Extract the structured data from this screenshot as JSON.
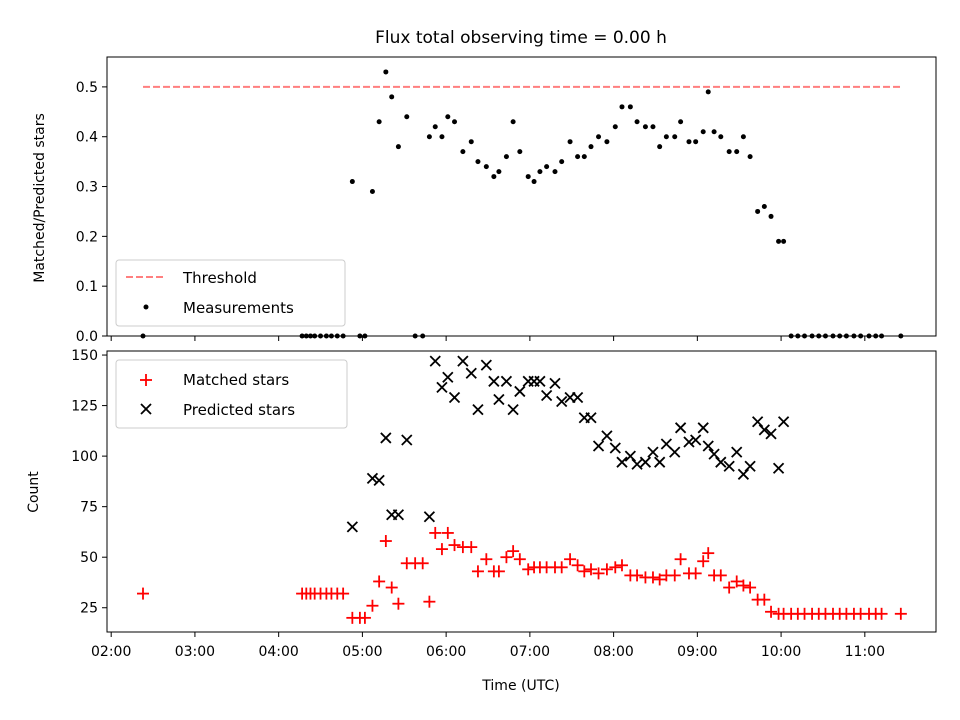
{
  "chart_data": [
    {
      "type": "scatter",
      "title": "Flux total observing time = 0.00 h",
      "ylabel": "Matched/Predicted stars",
      "xlabel": "",
      "ylim": [
        0,
        0.56
      ],
      "yticks": [
        "0.0",
        "0.1",
        "0.2",
        "0.3",
        "0.4",
        "0.5"
      ],
      "ytick_values": [
        0,
        0.1,
        0.2,
        0.3,
        0.4,
        0.5
      ],
      "grid": false,
      "legend": "lower-left",
      "threshold": {
        "name": "Threshold",
        "value": 0.5,
        "x_range": [
          2.38,
          11.43
        ],
        "color": "#ff7f7f"
      },
      "series": [
        {
          "name": "Measurements",
          "color": "#000000",
          "marker": "dot",
          "x": [
            2.38,
            4.28,
            4.33,
            4.38,
            4.43,
            4.5,
            4.57,
            4.63,
            4.7,
            4.77,
            4.88,
            4.97,
            5.03,
            5.12,
            5.2,
            5.28,
            5.35,
            5.43,
            5.53,
            5.63,
            5.72,
            5.8,
            5.87,
            5.95,
            6.02,
            6.1,
            6.2,
            6.3,
            6.38,
            6.48,
            6.57,
            6.63,
            6.72,
            6.8,
            6.88,
            6.98,
            7.05,
            7.12,
            7.2,
            7.3,
            7.38,
            7.48,
            7.57,
            7.65,
            7.73,
            7.82,
            7.92,
            8.02,
            8.1,
            8.2,
            8.28,
            8.38,
            8.47,
            8.55,
            8.63,
            8.73,
            8.8,
            8.9,
            8.98,
            9.07,
            9.13,
            9.2,
            9.28,
            9.38,
            9.47,
            9.55,
            9.63,
            9.72,
            9.8,
            9.88,
            9.97,
            10.03,
            10.12,
            10.2,
            10.28,
            10.37,
            10.45,
            10.53,
            10.62,
            10.7,
            10.78,
            10.87,
            10.95,
            11.05,
            11.13,
            11.2,
            11.43
          ],
          "y": [
            0.0,
            0.0,
            0.0,
            0.0,
            0.0,
            0.0,
            0.0,
            0.0,
            0.0,
            0.0,
            0.31,
            0.0,
            0.0,
            0.29,
            0.43,
            0.53,
            0.48,
            0.38,
            0.44,
            0.0,
            0.0,
            0.4,
            0.42,
            0.4,
            0.44,
            0.43,
            0.37,
            0.39,
            0.35,
            0.34,
            0.32,
            0.33,
            0.36,
            0.43,
            0.37,
            0.32,
            0.31,
            0.33,
            0.34,
            0.33,
            0.35,
            0.39,
            0.36,
            0.36,
            0.38,
            0.4,
            0.39,
            0.42,
            0.46,
            0.46,
            0.43,
            0.42,
            0.42,
            0.38,
            0.4,
            0.4,
            0.43,
            0.39,
            0.39,
            0.41,
            0.49,
            0.41,
            0.4,
            0.37,
            0.37,
            0.4,
            0.36,
            0.25,
            0.26,
            0.24,
            0.19,
            0.19,
            0.0,
            0.0,
            0.0,
            0.0,
            0.0,
            0.0,
            0.0,
            0.0,
            0.0,
            0.0,
            0.0,
            0.0,
            0.0,
            0.0,
            0.0
          ]
        }
      ]
    },
    {
      "type": "scatter",
      "title": "",
      "ylabel": "Count",
      "xlabel": "Time (UTC)",
      "xlim": [
        1.95,
        11.85
      ],
      "ylim": [
        13,
        152
      ],
      "yticks": [
        "25",
        "50",
        "75",
        "100",
        "125",
        "150"
      ],
      "ytick_values": [
        25,
        50,
        75,
        100,
        125,
        150
      ],
      "xticks": [
        "02:00",
        "03:00",
        "04:00",
        "05:00",
        "06:00",
        "07:00",
        "08:00",
        "09:00",
        "10:00",
        "11:00"
      ],
      "xtick_values": [
        2,
        3,
        4,
        5,
        6,
        7,
        8,
        9,
        10,
        11
      ],
      "grid": false,
      "legend": "top-left",
      "series": [
        {
          "name": "Matched stars",
          "color": "#ff0000",
          "marker": "plus",
          "x": [
            2.38,
            4.28,
            4.33,
            4.38,
            4.43,
            4.5,
            4.57,
            4.63,
            4.7,
            4.77,
            4.88,
            4.97,
            5.03,
            5.12,
            5.2,
            5.28,
            5.35,
            5.43,
            5.53,
            5.63,
            5.72,
            5.8,
            5.87,
            5.95,
            6.02,
            6.1,
            6.2,
            6.3,
            6.38,
            6.48,
            6.57,
            6.63,
            6.72,
            6.8,
            6.88,
            6.98,
            7.05,
            7.12,
            7.2,
            7.3,
            7.38,
            7.48,
            7.57,
            7.65,
            7.73,
            7.82,
            7.92,
            8.02,
            8.1,
            8.2,
            8.28,
            8.38,
            8.47,
            8.55,
            8.63,
            8.73,
            8.8,
            8.9,
            8.98,
            9.07,
            9.13,
            9.2,
            9.28,
            9.38,
            9.47,
            9.55,
            9.63,
            9.72,
            9.8,
            9.88,
            9.97,
            10.03,
            10.12,
            10.2,
            10.28,
            10.37,
            10.45,
            10.53,
            10.62,
            10.7,
            10.78,
            10.87,
            10.95,
            11.05,
            11.13,
            11.2,
            11.43
          ],
          "y": [
            32,
            32,
            32,
            32,
            32,
            32,
            32,
            32,
            32,
            32,
            20,
            20,
            20,
            26,
            38,
            58,
            35,
            27,
            47,
            47,
            47,
            28,
            62,
            54,
            62,
            56,
            55,
            55,
            43,
            49,
            43,
            43,
            50,
            53,
            49,
            44,
            45,
            45,
            45,
            45,
            45,
            49,
            46,
            43,
            44,
            42,
            44,
            45,
            46,
            41,
            41,
            40,
            40,
            39,
            41,
            41,
            49,
            42,
            42,
            48,
            52,
            41,
            41,
            35,
            38,
            36,
            35,
            29,
            29,
            23,
            22,
            22,
            22,
            22,
            22,
            22,
            22,
            22,
            22,
            22,
            22,
            22,
            22,
            22,
            22,
            22,
            22
          ]
        },
        {
          "name": "Predicted stars",
          "color": "#000000",
          "marker": "x",
          "x": [
            4.88,
            5.12,
            5.2,
            5.28,
            5.35,
            5.43,
            5.53,
            5.8,
            5.87,
            5.95,
            6.02,
            6.1,
            6.2,
            6.3,
            6.38,
            6.48,
            6.57,
            6.63,
            6.72,
            6.8,
            6.88,
            6.98,
            7.05,
            7.12,
            7.2,
            7.3,
            7.38,
            7.48,
            7.57,
            7.65,
            7.73,
            7.82,
            7.92,
            8.02,
            8.1,
            8.2,
            8.28,
            8.38,
            8.47,
            8.55,
            8.63,
            8.73,
            8.8,
            8.9,
            8.98,
            9.07,
            9.13,
            9.2,
            9.28,
            9.38,
            9.47,
            9.55,
            9.63,
            9.72,
            9.8,
            9.88,
            9.97,
            10.03
          ],
          "y": [
            65,
            89,
            88,
            109,
            71,
            71,
            108,
            70,
            147,
            134,
            139,
            129,
            147,
            141,
            123,
            145,
            137,
            128,
            137,
            123,
            132,
            137,
            137,
            137,
            130,
            136,
            127,
            129,
            129,
            119,
            119,
            105,
            110,
            104,
            97,
            100,
            96,
            97,
            102,
            97,
            106,
            102,
            114,
            107,
            108,
            114,
            105,
            101,
            97,
            95,
            102,
            91,
            95,
            117,
            113,
            111,
            94,
            117
          ]
        }
      ]
    }
  ]
}
